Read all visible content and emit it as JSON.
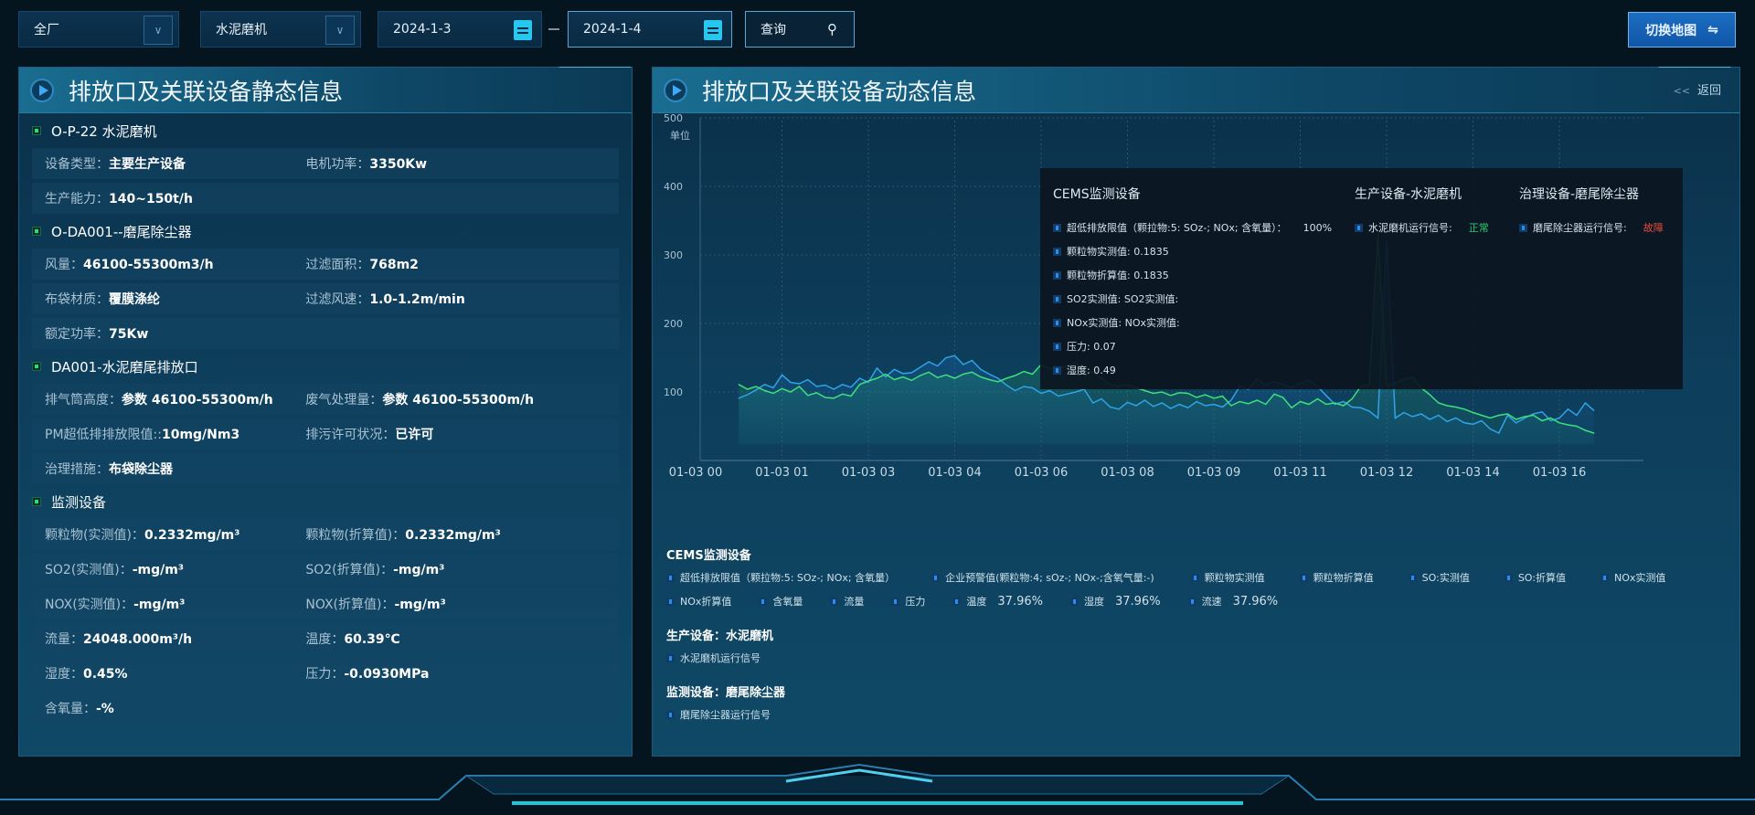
{
  "toolbar": {
    "factory": "全厂",
    "equipment": "水泥磨机",
    "date_start": "2024-1-3",
    "date_end": "2024-1-4",
    "query": "查询",
    "switch_map": "切换地图"
  },
  "static_panel": {
    "title": "排放口及关联设备静态信息",
    "sections": [
      {
        "title": "O-P-22 水泥磨机",
        "rows": [
          [
            {
              "k": "设备类型：",
              "v": "主要生产设备"
            },
            {
              "k": "电机功率：",
              "v": "3350Kw"
            }
          ],
          [
            {
              "k": "生产能力：",
              "v": "140~150t/h"
            }
          ]
        ]
      },
      {
        "title": "O-DA001--磨尾除尘器",
        "rows": [
          [
            {
              "k": "风量：",
              "v": "46100-55300m3/h"
            },
            {
              "k": "过滤面积：",
              "v": "768m2"
            }
          ],
          [
            {
              "k": "布袋材质：",
              "v": "覆膜涤纶"
            },
            {
              "k": "过滤风速：",
              "v": "1.0-1.2m/min"
            }
          ],
          [
            {
              "k": "额定功率：",
              "v": "75Kw"
            }
          ]
        ]
      },
      {
        "title": "DA001-水泥磨尾排放口",
        "rows": [
          [
            {
              "k": "排气筒高度：",
              "v": "参数 46100-55300m/h"
            },
            {
              "k": "废气处理量：",
              "v": "参数 46100-55300m/h"
            }
          ],
          [
            {
              "k": "PM超低排排放限值::",
              "v": "10mg/Nm3"
            },
            {
              "k": "排污许可状况：",
              "v": "已许可"
            }
          ],
          [
            {
              "k": "治理措施：",
              "v": "布袋除尘器"
            }
          ]
        ]
      },
      {
        "title": "监测设备",
        "rows": [
          [
            {
              "k": "颗粒物(实测值)：",
              "v": "0.2332mg/m³"
            },
            {
              "k": "颗粒物(折算值)：",
              "v": "0.2332mg/m³"
            }
          ],
          [
            {
              "k": "SO2(实测值)：",
              "v": "-mg/m³"
            },
            {
              "k": "SO2(折算值)：",
              "v": "-mg/m³"
            }
          ],
          [
            {
              "k": "NOX(实测值)：",
              "v": "-mg/m³"
            },
            {
              "k": "NOX(折算值)：",
              "v": "-mg/m³"
            }
          ],
          [
            {
              "k": "流量：",
              "v": "24048.000m³/h"
            },
            {
              "k": "温度：",
              "v": "60.39℃"
            }
          ],
          [
            {
              "k": "湿度：",
              "v": "0.45%"
            },
            {
              "k": "压力：",
              "v": "-0.0930MPa"
            }
          ],
          [
            {
              "k": "含氧量：",
              "v": "-%"
            }
          ]
        ]
      }
    ]
  },
  "dynamic_panel": {
    "title": "排放口及关联设备动态信息",
    "back": "返回",
    "back_icon": "double-chevron-left-icon"
  },
  "chart_data": {
    "type": "area",
    "ylabel": "单位",
    "ylim": [
      0,
      500
    ],
    "yticks": [
      100,
      200,
      300,
      400,
      500
    ],
    "grid": true,
    "xticks": [
      "01-03 00",
      "01-03 01",
      "01-03 03",
      "01-03 04",
      "01-03 06",
      "01-03 08",
      "01-03 09",
      "01-03 11",
      "01-03 12",
      "01-03 14",
      "01-03 16"
    ],
    "points_per_tick": 10,
    "first_point_index": 5,
    "series": [
      {
        "color": "#2fa3e8",
        "values": [
          91,
          96,
          103,
          111,
          106,
          125,
          114,
          112,
          118,
          108,
          110,
          104,
          111,
          107,
          120,
          114,
          135,
          122,
          133,
          127,
          128,
          136,
          144,
          138,
          150,
          153,
          140,
          146,
          133,
          126,
          120,
          110,
          102,
          108,
          106,
          98,
          102,
          94,
          97,
          100,
          104,
          84,
          90,
          78,
          75,
          85,
          80,
          88,
          79,
          84,
          76,
          82,
          77,
          86,
          80,
          82,
          78,
          88,
          108,
          104,
          119,
          110,
          115,
          111,
          106,
          113,
          117,
          108,
          95,
          82,
          86,
          78,
          77,
          72,
          62,
          320,
          62,
          70,
          64,
          68,
          60,
          66,
          57,
          62,
          55,
          53,
          58,
          46,
          40,
          66,
          55,
          62,
          68,
          71,
          58,
          62,
          75,
          66,
          84,
          73
        ]
      },
      {
        "color": "#3ee07a",
        "values": [
          111,
          104,
          108,
          102,
          98,
          105,
          100,
          108,
          95,
          99,
          92,
          91,
          97,
          94,
          111,
          116,
          120,
          126,
          118,
          122,
          117,
          124,
          129,
          121,
          125,
          120,
          126,
          129,
          122,
          118,
          115,
          120,
          124,
          130,
          126,
          140,
          134,
          135,
          138,
          144,
          130,
          129,
          120,
          111,
          108,
          111,
          106,
          102,
          98,
          100,
          95,
          99,
          98,
          92,
          96,
          91,
          94,
          80,
          86,
          83,
          88,
          82,
          97,
          92,
          77,
          86,
          82,
          90,
          82,
          84,
          80,
          90,
          108,
          111,
          330,
          108,
          113,
          118,
          122,
          106,
          96,
          84,
          80,
          78,
          75,
          70,
          66,
          62,
          66,
          68,
          60,
          64,
          66,
          58,
          62,
          55,
          52,
          50,
          44,
          40
        ]
      }
    ]
  },
  "tooltip": {
    "cems": {
      "title": "CEMS监测设备",
      "items": [
        {
          "label": "超低排放限值（颗拉物:5: SOz-; NOx; 含氧量）：",
          "value": "100%"
        },
        {
          "label": "颗粒物实测值: 0.1835"
        },
        {
          "label": "颗粒物折算值: 0.1835"
        },
        {
          "label": "SO2实测值: SO2实测值:"
        },
        {
          "label": "NOx实测值: NOx实测值:"
        },
        {
          "label": "压力: 0.07"
        },
        {
          "label": "湿度: 0.49"
        }
      ]
    },
    "production": {
      "title": "生产设备-水泥磨机",
      "label": "水泥磨机运行信号:",
      "value": "正常",
      "color": "#2ecc71"
    },
    "treatment": {
      "title": "治理设备-磨尾除尘器",
      "label": "磨尾除尘器运行信号:",
      "value": "故障",
      "color": "#e74c3c"
    }
  },
  "legend": {
    "cems_title": "CEMS监测设备",
    "row1": [
      "超低排放限值（颗拉物:5: SOz-; NOx; 含氧量）",
      "企业预警值(颗粒物:4; sOz-; NOx-;含氧气量:-)",
      "颗粒物实测值",
      "颗粒物折算值",
      "SO:实测值",
      "SO:折算值",
      "NOx实测值"
    ],
    "row2": [
      {
        "label": "NOx折算值"
      },
      {
        "label": "含氧量"
      },
      {
        "label": "流量"
      },
      {
        "label": "压力"
      },
      {
        "label": "温度",
        "value": "37.96%"
      },
      {
        "label": "湿度",
        "value": "37.96%"
      },
      {
        "label": "流速",
        "value": "37.96%"
      }
    ],
    "production_title": "生产设备：水泥磨机",
    "production_item": "水泥磨机运行信号",
    "monitor_title": "监测设备：磨尾除尘器",
    "monitor_item": "磨尾除尘器运行信号"
  }
}
